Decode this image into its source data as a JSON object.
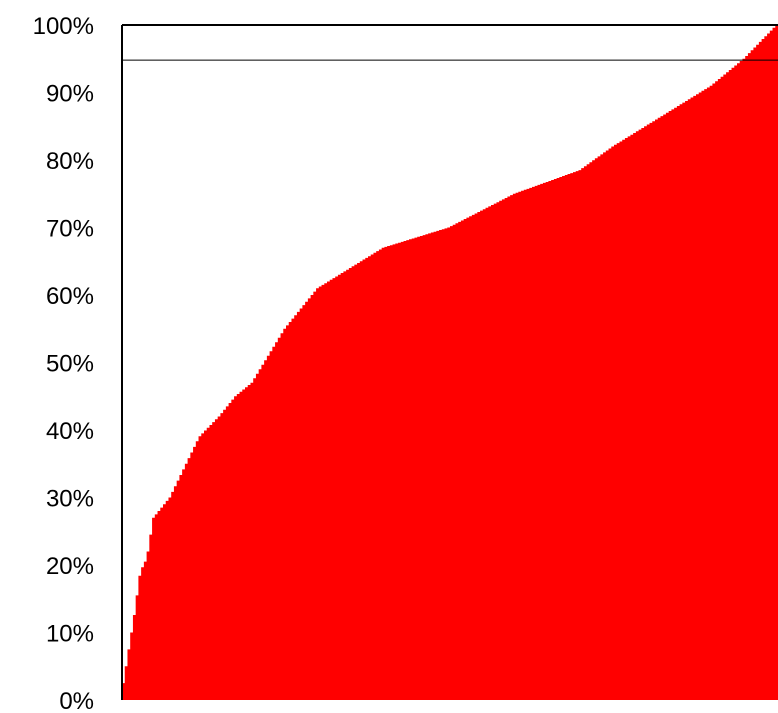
{
  "chart_data": {
    "type": "area",
    "title": "",
    "xlabel": "",
    "ylabel": "",
    "ylim": [
      0,
      100
    ],
    "y_tick_labels": [
      "0%",
      "10%",
      "20%",
      "30%",
      "40%",
      "50%",
      "60%",
      "70%",
      "80%",
      "90%",
      "100%"
    ],
    "y_ticks": [
      0,
      10,
      20,
      30,
      40,
      50,
      60,
      70,
      80,
      90,
      100
    ],
    "reference_line": 94.8,
    "fill_color": "#ff0000",
    "grid": false,
    "x": [
      0,
      1,
      2,
      3,
      4,
      5,
      7.5,
      10,
      12,
      15,
      17.5,
      20,
      25,
      30,
      40,
      50,
      60,
      70,
      75,
      80,
      85,
      90,
      95,
      97,
      100
    ],
    "values": [
      0,
      6,
      12,
      19,
      21,
      27,
      30,
      35,
      39,
      42,
      45,
      47,
      55,
      61,
      67,
      70,
      75,
      78.5,
      82,
      85,
      88,
      91,
      95,
      97,
      100
    ]
  }
}
